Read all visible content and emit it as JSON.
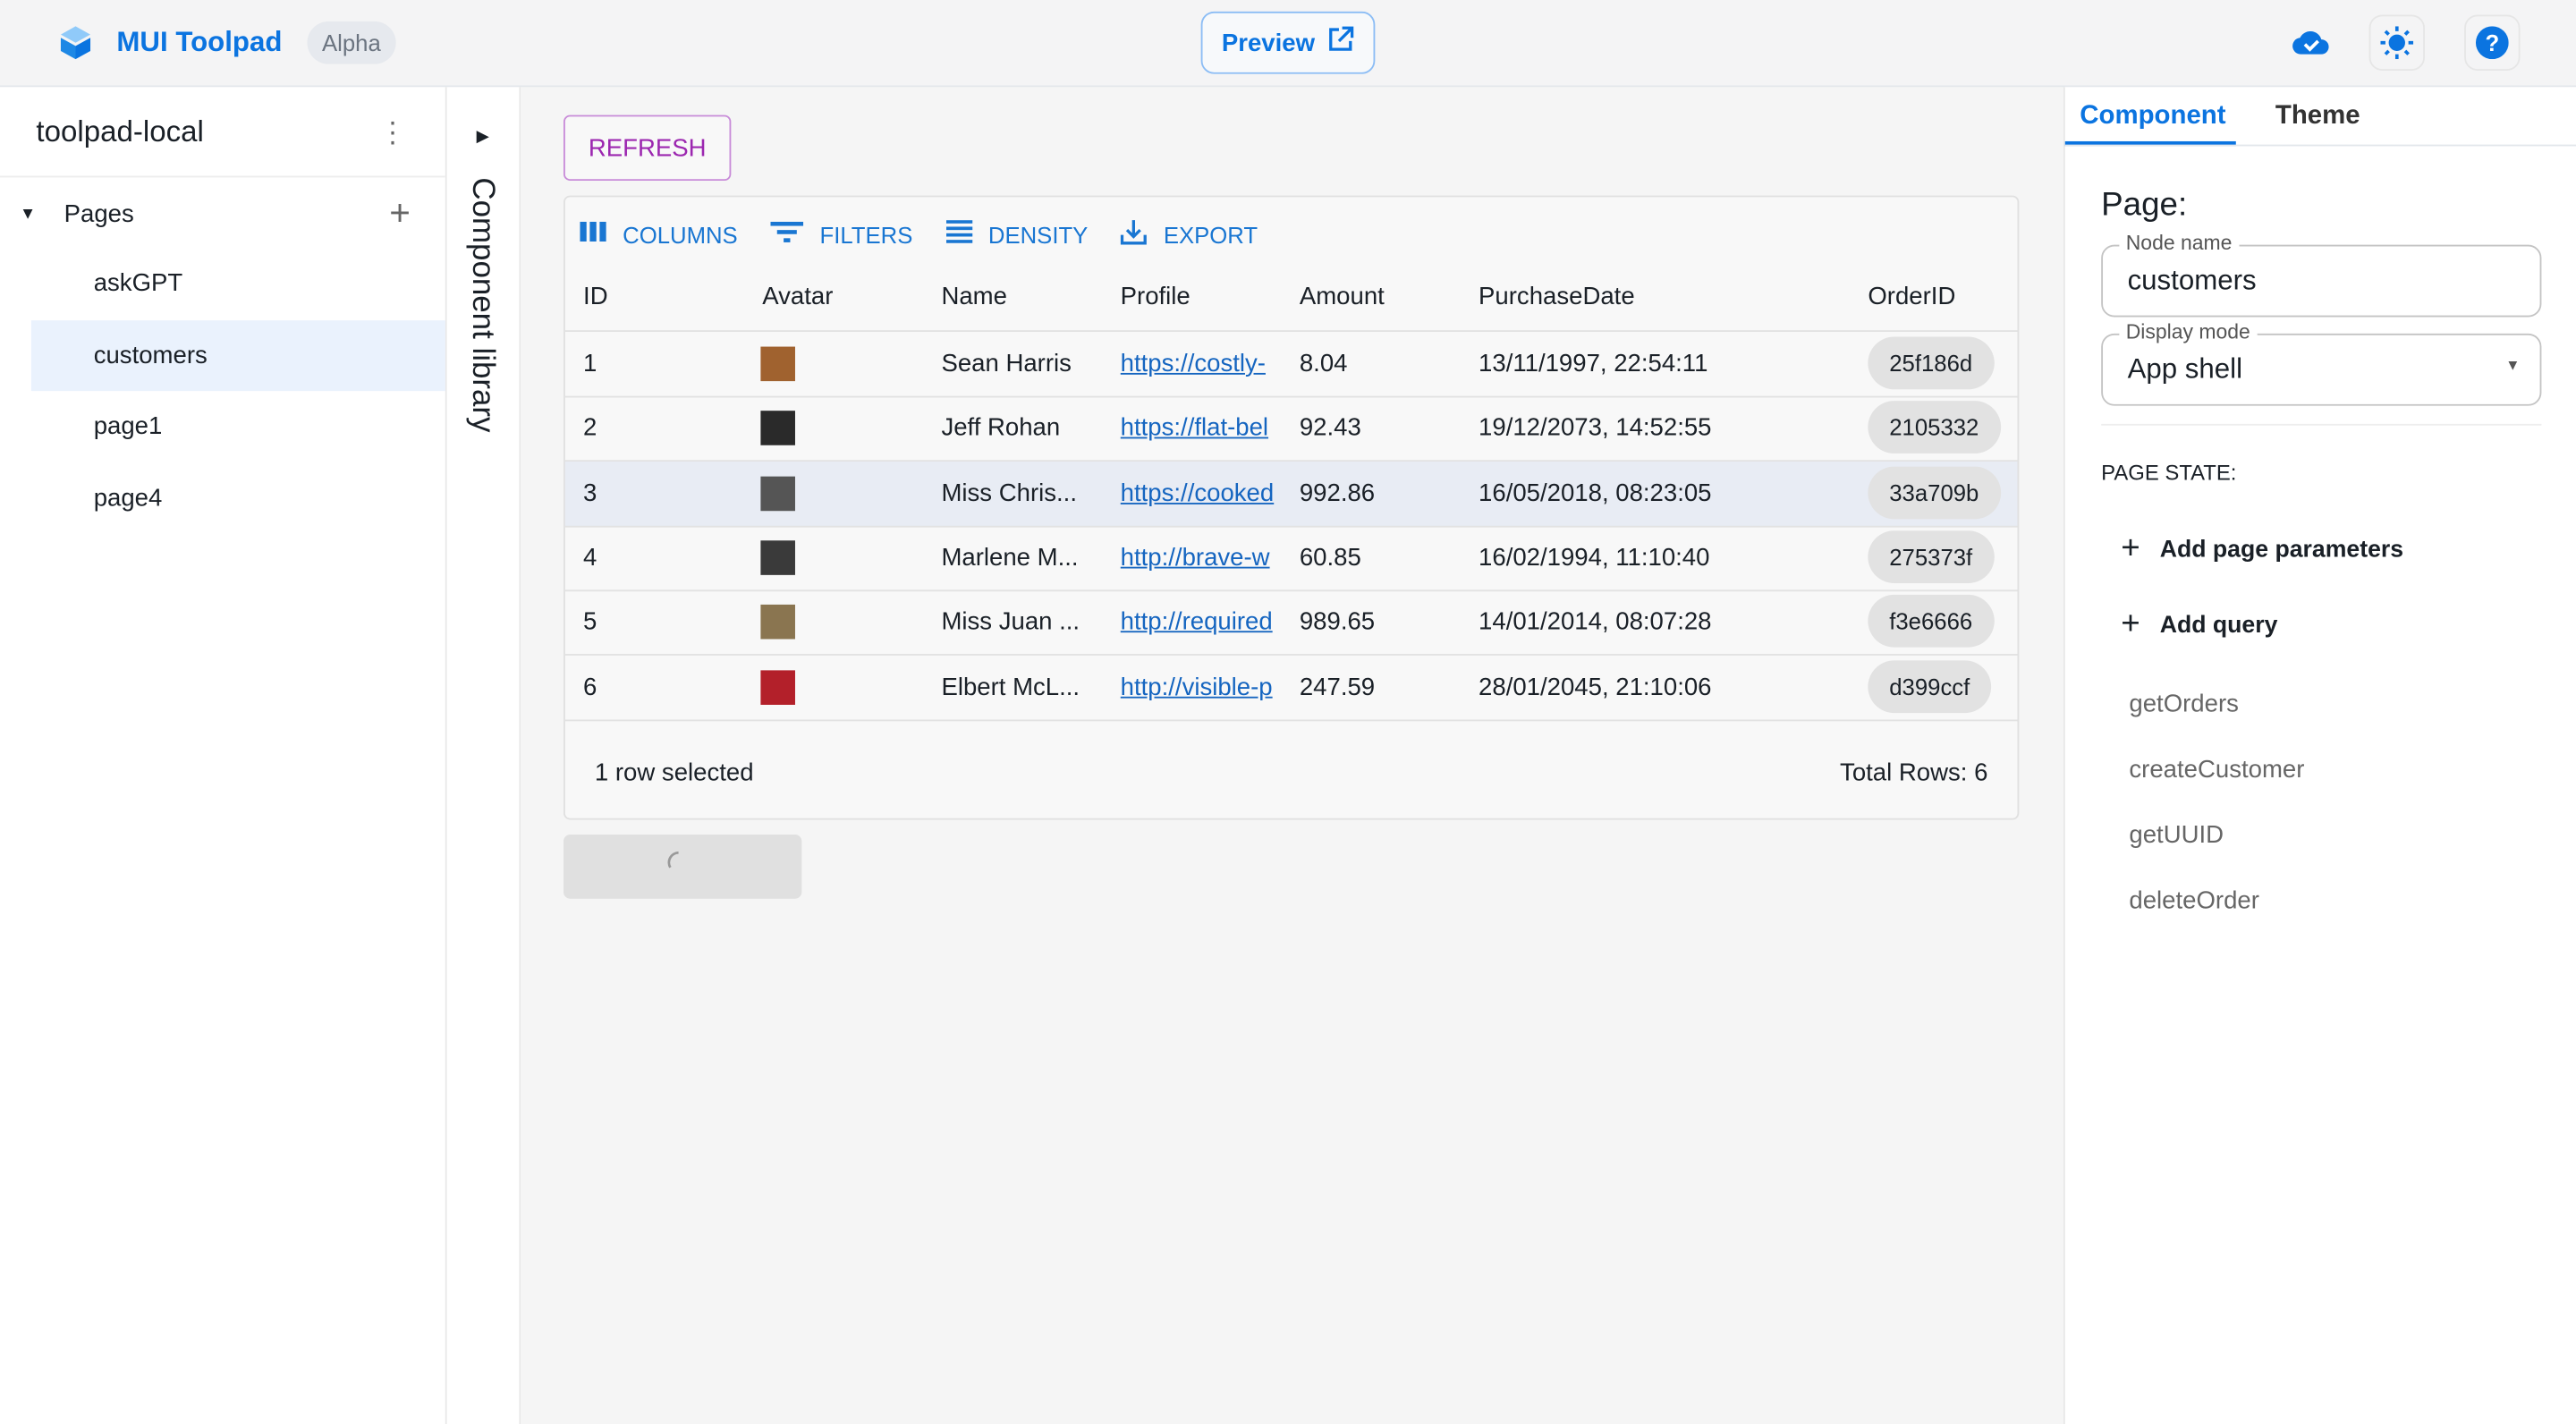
{
  "topbar": {
    "brand": "MUI Toolpad",
    "badge": "Alpha",
    "preview": "Preview"
  },
  "sidebar": {
    "project": "toolpad-local",
    "section": "Pages",
    "pages": [
      {
        "label": "askGPT"
      },
      {
        "label": "customers",
        "selected": true
      },
      {
        "label": "page1"
      },
      {
        "label": "page4"
      }
    ]
  },
  "component_library": {
    "label": "Component library"
  },
  "main": {
    "refresh": "REFRESH",
    "toolbar": {
      "columns": "COLUMNS",
      "filters": "FILTERS",
      "density": "DENSITY",
      "export": "EXPORT"
    },
    "columns": [
      "ID",
      "Avatar",
      "Name",
      "Profile",
      "Amount",
      "PurchaseDate",
      "OrderID"
    ],
    "rows": [
      {
        "id": "1",
        "name": "Sean Harris",
        "profile": "https://costly-",
        "amount": "8.04",
        "date": "13/11/1997, 22:54:11",
        "order": "25f186d",
        "avatar_color": "#a0622f"
      },
      {
        "id": "2",
        "name": "Jeff Rohan",
        "profile": "https://flat-bel",
        "amount": "92.43",
        "date": "19/12/2073, 14:52:55",
        "order": "2105332",
        "avatar_color": "#2a2a2a"
      },
      {
        "id": "3",
        "name": "Miss Chris...",
        "profile": "https://cooked",
        "amount": "992.86",
        "date": "16/05/2018, 08:23:05",
        "order": "33a709b",
        "avatar_color": "#555555",
        "selected": true
      },
      {
        "id": "4",
        "name": "Marlene M...",
        "profile": "http://brave-w",
        "amount": "60.85",
        "date": "16/02/1994, 11:10:40",
        "order": "275373f",
        "avatar_color": "#3a3a3a"
      },
      {
        "id": "5",
        "name": "Miss Juan ...",
        "profile": "http://required",
        "amount": "989.65",
        "date": "14/01/2014, 08:07:28",
        "order": "f3e6666",
        "avatar_color": "#8a7550"
      },
      {
        "id": "6",
        "name": "Elbert McL...",
        "profile": "http://visible-p",
        "amount": "247.59",
        "date": "28/01/2045, 21:10:06",
        "order": "d399ccf",
        "avatar_color": "#b3202a"
      }
    ],
    "footer": {
      "selected": "1 row selected",
      "total": "Total Rows: 6"
    }
  },
  "inspector": {
    "tabs": [
      "Component",
      "Theme"
    ],
    "title": "Page:",
    "node_name_label": "Node name",
    "node_name": "customers",
    "display_mode_label": "Display mode",
    "display_mode": "App shell",
    "page_state": "PAGE STATE:",
    "add_params": "Add page parameters",
    "add_query": "Add query",
    "queries": [
      "getOrders",
      "createCustomer",
      "getUUID",
      "deleteOrder"
    ]
  },
  "colors": {
    "accent": "#0b74e0",
    "secondary": "#9c27b0"
  }
}
